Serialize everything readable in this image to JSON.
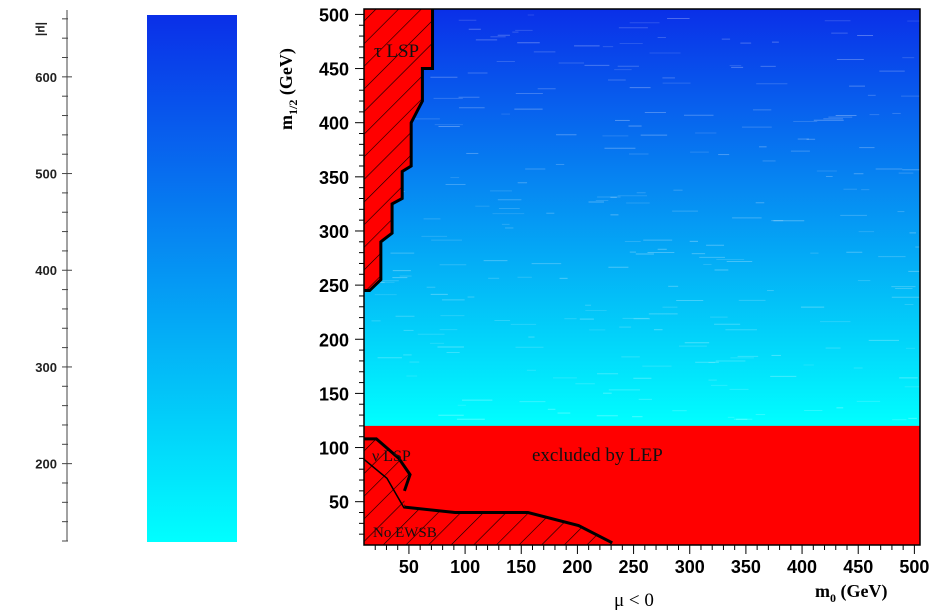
{
  "chart_data": [
    {
      "type": "heatmap",
      "colorbar_label": "|μ|",
      "colorbar_range": [
        120,
        665
      ],
      "colorbar_ticks": [
        200,
        300,
        400,
        500,
        600
      ],
      "colorbar_colors": {
        "low": "#00ffff",
        "high": "#0a2fe8"
      }
    },
    {
      "type": "heatmap",
      "xlabel_main": "m",
      "xlabel_sub": "0",
      "xlabel_unit": " (GeV)",
      "ylabel_main": "m",
      "ylabel_sub": "1/2",
      "ylabel_unit": " (GeV)",
      "caption": "μ < 0",
      "xlim": [
        10,
        505
      ],
      "ylim": [
        10,
        505
      ],
      "xticks": [
        50,
        100,
        150,
        200,
        250,
        300,
        350,
        400,
        450,
        500
      ],
      "yticks": [
        50,
        100,
        150,
        200,
        250,
        300,
        350,
        400,
        450,
        500
      ],
      "gradient": {
        "y_values": [
          505,
          120
        ],
        "colors": [
          "#0a2fe8",
          "#00ffff"
        ]
      },
      "regions": [
        {
          "label": "τ LSP",
          "color": "#ff0000",
          "hatched": true,
          "boundary": [
            [
              10,
              505
            ],
            [
              71,
              505
            ],
            [
              71,
              450
            ],
            [
              62,
              450
            ],
            [
              62,
              420
            ],
            [
              52,
              400
            ],
            [
              52,
              360
            ],
            [
              44,
              355
            ],
            [
              44,
              330
            ],
            [
              35,
              325
            ],
            [
              35,
              298
            ],
            [
              25,
              290
            ],
            [
              25,
              255
            ],
            [
              15,
              245
            ],
            [
              10,
              245
            ]
          ]
        },
        {
          "label": "excluded by LEP",
          "color": "#ff0000",
          "hatched": false,
          "boundary": [
            [
              10,
              120
            ],
            [
              505,
              120
            ],
            [
              505,
              10
            ],
            [
              10,
              10
            ]
          ]
        },
        {
          "label": "ν LSP",
          "color": "#ff0000",
          "hatched": true,
          "boundary": [
            [
              10,
              108
            ],
            [
              21,
              108
            ],
            [
              41,
              90
            ],
            [
              51,
              75
            ],
            [
              46,
              60
            ]
          ]
        },
        {
          "label": "No EWSB",
          "color": "#ff0000",
          "hatched": true,
          "boundary": [
            [
              10,
              90
            ],
            [
              31,
              72
            ],
            [
              46,
              45
            ],
            [
              91,
              40
            ],
            [
              156,
              40
            ],
            [
              201,
              28
            ],
            [
              231,
              12
            ]
          ]
        }
      ],
      "annotations": {
        "tau_lsp": "τ LSP",
        "lep": "excluded by LEP",
        "nu_lsp": "ν LSP",
        "no_ewsb": "No EWSB"
      }
    }
  ]
}
